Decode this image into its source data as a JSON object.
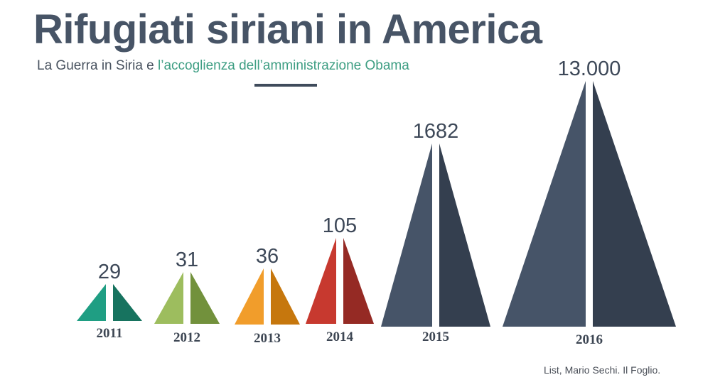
{
  "title": "Rifugiati siriani in America",
  "subtitle": {
    "part1": "La Guerra in Siria e ",
    "part2": "l’accoglienza dell’amministrazione Obama"
  },
  "source": "List, Mario Sechi. Il Foglio.",
  "colors": {
    "title": "#475466",
    "subtitle_accent": "#3e9e83",
    "divider": "#3f4b5b"
  },
  "chart_data": {
    "type": "bar",
    "categories": [
      "2011",
      "2012",
      "2013",
      "2014",
      "2015",
      "2016"
    ],
    "labels": [
      "29",
      "31",
      "36",
      "105",
      "1682",
      "13.000"
    ],
    "values": [
      29,
      31,
      36,
      105,
      1682,
      13000
    ],
    "title": "Rifugiati siriani in America",
    "subtitle": "La Guerra in Siria e l’accoglienza dell’amministrazione Obama",
    "colors": [
      [
        "#1f9e83",
        "#17735f"
      ],
      [
        "#9dbd5e",
        "#72913c"
      ],
      [
        "#f19d2b",
        "#c6770d"
      ],
      [
        "#c7392f",
        "#952a24"
      ],
      [
        "#465468",
        "#343f4f"
      ],
      [
        "#465468",
        "#343f4f"
      ]
    ]
  }
}
